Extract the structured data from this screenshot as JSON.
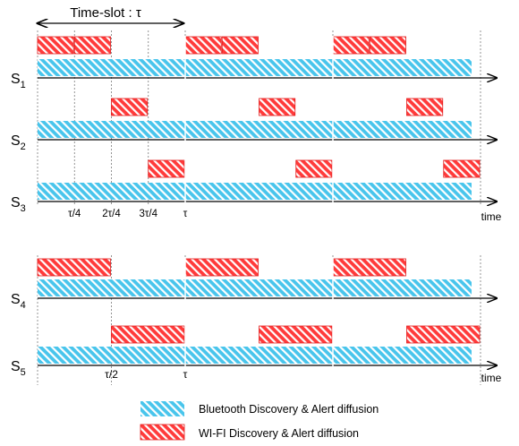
{
  "title": "Time-slot : τ",
  "time_label": "time",
  "colors": {
    "bluetooth_fill": "#49c5ec",
    "bluetooth_hatch": "#ffffff",
    "wifi_fill": "#ff3b3b",
    "wifi_hatch": "#ffffff",
    "wifi_border": "#e11b1b",
    "axis": "#000000",
    "guide": "#7a7a7a",
    "legend_text": "#7f8ea5"
  },
  "group1": {
    "slots": 3,
    "ticks": [
      "τ/4",
      "2τ/4",
      "3τ/4",
      "τ"
    ],
    "rows": [
      {
        "name": "S",
        "sub": "1",
        "wifi_quarters": [
          0,
          1
        ]
      },
      {
        "name": "S",
        "sub": "2",
        "wifi_quarters": [
          2
        ]
      },
      {
        "name": "S",
        "sub": "3",
        "wifi_quarters": [
          3
        ]
      }
    ]
  },
  "group2": {
    "slots": 3,
    "ticks": [
      "τ/2",
      "τ"
    ],
    "rows": [
      {
        "name": "S",
        "sub": "4",
        "wifi_halves": [
          0
        ]
      },
      {
        "name": "S",
        "sub": "5",
        "wifi_halves": [
          1
        ]
      }
    ]
  },
  "legend": [
    {
      "kind": "bluetooth",
      "label": "Bluetooth Discovery & Alert diffusion"
    },
    {
      "kind": "wifi",
      "label": "WI-FI Discovery & Alert diffusion"
    }
  ]
}
